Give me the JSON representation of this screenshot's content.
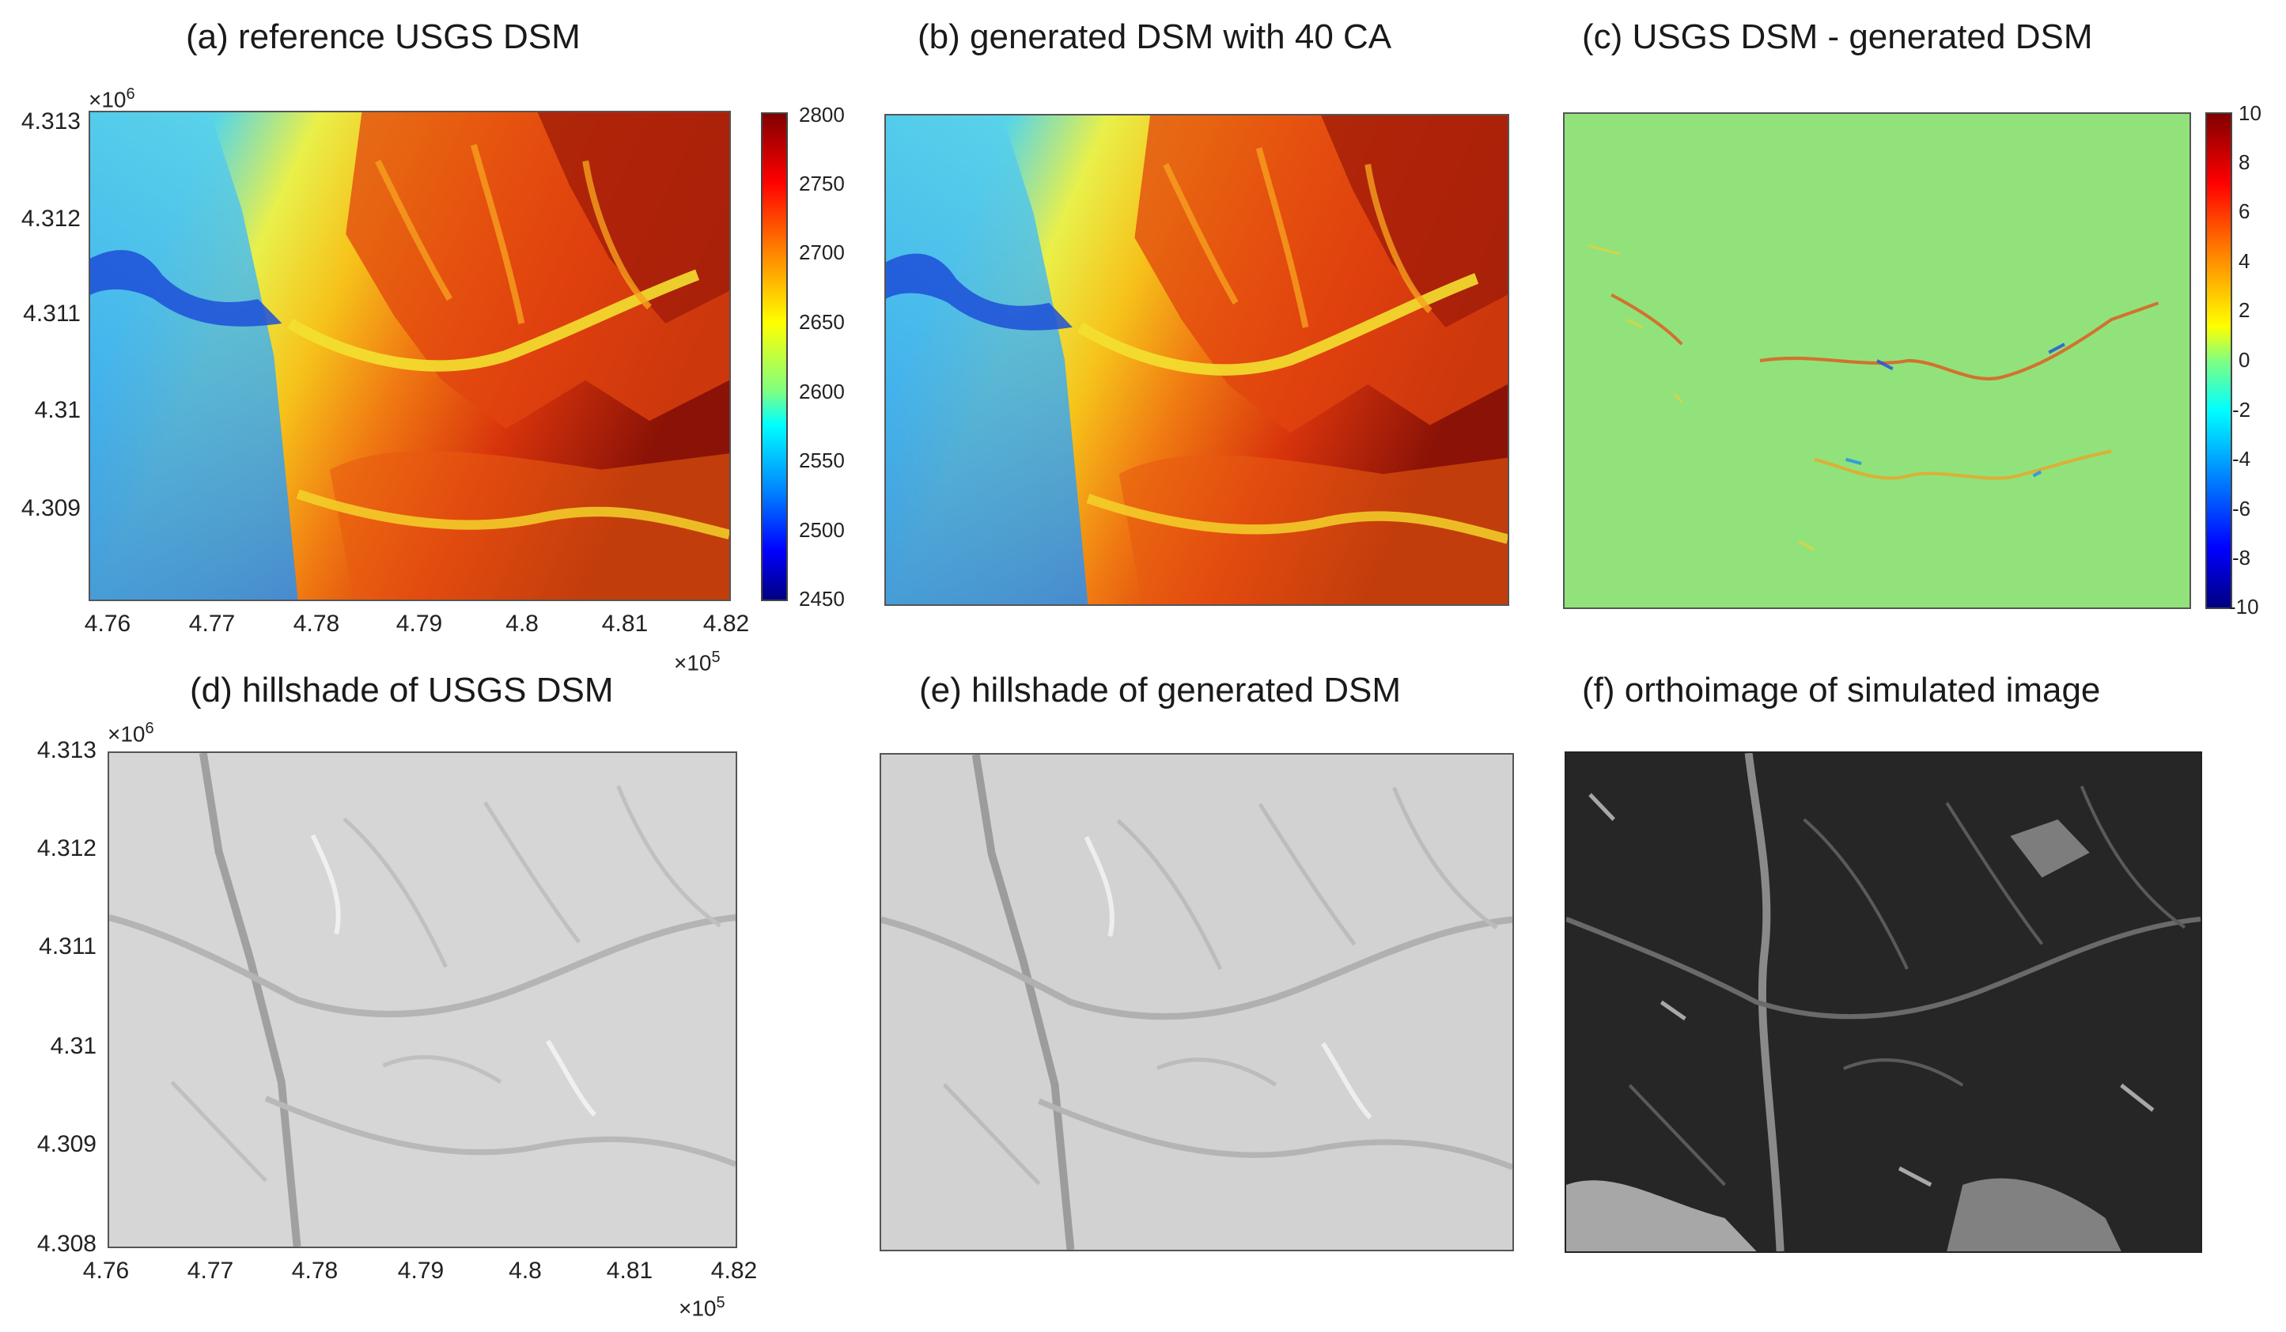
{
  "titles": {
    "a": "(a) reference USGS DSM",
    "b": "(b) generated DSM with 40 CA",
    "c": "(c) USGS DSM - generated DSM",
    "d": "(d) hillshade of USGS DSM",
    "e": "(e) hillshade of generated DSM",
    "f": "(f) orthoimage of simulated image"
  },
  "axes": {
    "x_multiplier": "×10",
    "x_exponent": "5",
    "y_multiplier": "×10",
    "y_exponent": "6",
    "x_ticks": [
      "4.76",
      "4.77",
      "4.78",
      "4.79",
      "4.8",
      "4.81",
      "4.82"
    ],
    "y_ticks_top": [
      "4.313",
      "4.312",
      "4.311",
      "4.31",
      "4.309"
    ],
    "y_ticks_bottom": [
      "4.313",
      "4.312",
      "4.311",
      "4.31",
      "4.309",
      "4.308"
    ]
  },
  "colorbars": {
    "elevation": [
      "2800",
      "2750",
      "2700",
      "2650",
      "2600",
      "2550",
      "2500",
      "2450"
    ],
    "difference": [
      "10",
      "8",
      "6",
      "4",
      "2",
      "0",
      "-2",
      "-4",
      "-6",
      "-8",
      "-10"
    ]
  },
  "chart_data": [
    {
      "type": "heatmap",
      "title": "(a) reference USGS DSM",
      "xlim": [
        476000,
        482000
      ],
      "ylim": [
        4308000,
        4313000
      ],
      "colormap": "jet",
      "clim": [
        2450,
        2800
      ],
      "colorbar_ticks": [
        2450,
        2500,
        2550,
        2600,
        2650,
        2700,
        2750,
        2800
      ]
    },
    {
      "type": "heatmap",
      "title": "(b) generated DSM with 40 CA",
      "colormap": "jet",
      "clim": [
        2450,
        2800
      ]
    },
    {
      "type": "heatmap",
      "title": "(c) USGS DSM - generated DSM",
      "colormap": "jet",
      "clim": [
        -10,
        10
      ],
      "colorbar_ticks": [
        -10,
        -8,
        -6,
        -4,
        -2,
        0,
        2,
        4,
        6,
        8,
        10
      ]
    },
    {
      "type": "heatmap",
      "title": "(d) hillshade of USGS DSM",
      "xlim": [
        476000,
        482000
      ],
      "ylim": [
        4308000,
        4313000
      ],
      "colormap": "gray"
    },
    {
      "type": "heatmap",
      "title": "(e) hillshade of generated DSM",
      "colormap": "gray"
    },
    {
      "type": "heatmap",
      "title": "(f) orthoimage of simulated image",
      "colormap": "gray"
    }
  ]
}
